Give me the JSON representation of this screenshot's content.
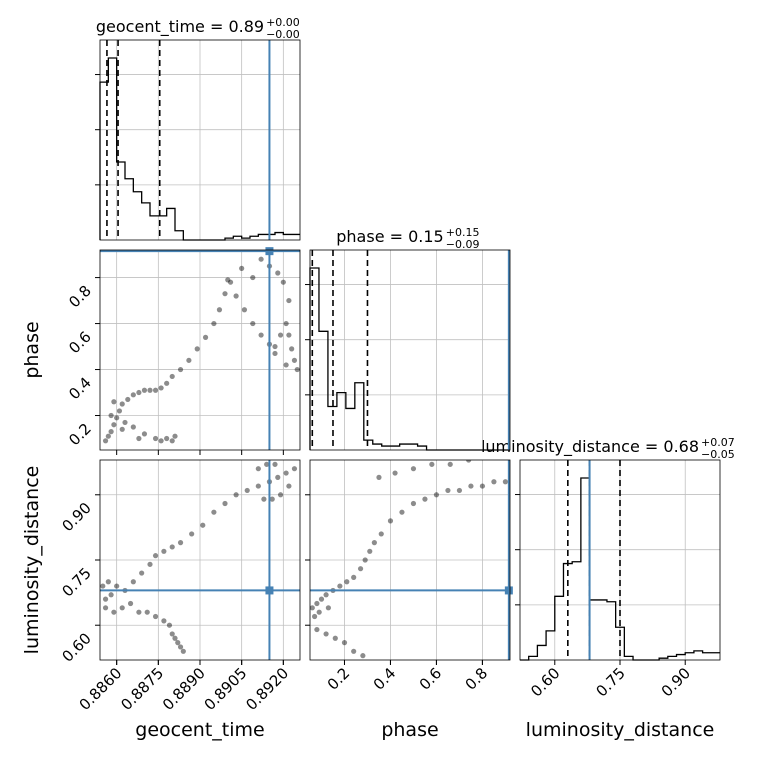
{
  "chart_data": {
    "type": "corner",
    "parameters": [
      "geocent_time",
      "phase",
      "luminosity_distance"
    ],
    "truths": {
      "geocent_time": 0.8915,
      "phase": 0.915,
      "luminosity_distance": 0.68
    },
    "truth_color": "#4682b4",
    "grid": true,
    "titles": {
      "geocent_time": {
        "label": "geocent_time",
        "median": "0.89",
        "plus": "+0.00",
        "minus": "−0.00"
      },
      "phase": {
        "label": "phase",
        "median": "0.15",
        "plus": "+0.15",
        "minus": "−0.09"
      },
      "luminosity_distance": {
        "label": "luminosity_distance",
        "median": "0.68",
        "plus": "+0.07",
        "minus": "−0.05"
      }
    },
    "axes": {
      "geocent_time": {
        "label": "geocent_time",
        "range": [
          0.8854,
          0.8926
        ],
        "ticks": [
          0.886,
          0.8875,
          0.889,
          0.8905,
          0.892
        ],
        "tick_labels": [
          "0.8860",
          "0.8875",
          "0.8890",
          "0.8905",
          "0.8920"
        ]
      },
      "phase": {
        "label": "phase",
        "range": [
          0.05,
          0.92
        ],
        "ticks": [
          0.2,
          0.4,
          0.6,
          0.8
        ],
        "tick_labels": [
          "0.2",
          "0.4",
          "0.6",
          "0.8"
        ]
      },
      "luminosity_distance": {
        "label": "luminosity_distance",
        "range": [
          0.52,
          0.98
        ],
        "ticks": [
          0.6,
          0.75,
          0.9
        ],
        "tick_labels": [
          "0.60",
          "0.75",
          "0.90"
        ]
      }
    },
    "histograms": {
      "geocent_time": {
        "bin_edges": [
          0.8854,
          0.8857,
          0.886,
          0.8863,
          0.8866,
          0.8869,
          0.8872,
          0.8875,
          0.8878,
          0.8881,
          0.8884,
          0.8887,
          0.889,
          0.8893,
          0.8896,
          0.8899,
          0.8902,
          0.8905,
          0.8908,
          0.8911,
          0.8914,
          0.8917,
          0.892,
          0.8923,
          0.8926
        ],
        "counts": [
          0.85,
          0.98,
          0.42,
          0.33,
          0.26,
          0.2,
          0.13,
          0.13,
          0.17,
          0.05,
          0.0,
          0.0,
          0.0,
          0.0,
          0.0,
          0.01,
          0.02,
          0.01,
          0.02,
          0.03,
          0.03,
          0.04,
          0.03,
          0.03
        ],
        "quantiles": [
          0.88565,
          0.88605,
          0.88755
        ]
      },
      "phase": {
        "bin_edges": [
          0.05,
          0.089,
          0.128,
          0.167,
          0.206,
          0.245,
          0.284,
          0.323,
          0.362,
          0.401,
          0.44,
          0.479,
          0.518,
          0.557,
          0.596,
          0.635,
          0.674,
          0.713,
          0.752,
          0.791,
          0.83,
          0.869,
          0.92
        ],
        "counts": [
          0.92,
          0.6,
          0.22,
          0.29,
          0.21,
          0.34,
          0.05,
          0.03,
          0.02,
          0.02,
          0.03,
          0.03,
          0.02,
          0.0,
          0.0,
          0.0,
          0.0,
          0.0,
          0.0,
          0.0,
          0.0,
          0.0
        ],
        "quantiles": [
          0.06,
          0.15,
          0.3
        ]
      },
      "luminosity_distance": {
        "bin_edges": [
          0.52,
          0.54,
          0.56,
          0.58,
          0.6,
          0.62,
          0.64,
          0.66,
          0.68,
          0.7,
          0.72,
          0.74,
          0.76,
          0.78,
          0.8,
          0.82,
          0.84,
          0.86,
          0.88,
          0.9,
          0.92,
          0.94,
          0.96,
          0.98
        ],
        "counts": [
          0.0,
          0.02,
          0.08,
          0.16,
          0.35,
          0.53,
          0.54,
          1.0,
          0.33,
          0.33,
          0.32,
          0.18,
          0.02,
          0.0,
          0.0,
          0.0,
          0.01,
          0.02,
          0.03,
          0.04,
          0.05,
          0.04,
          0.04
        ],
        "quantiles": [
          0.63,
          0.68,
          0.75
        ]
      }
    },
    "samples_2d": {
      "phase_vs_geocent_time": [
        [
          0.8856,
          0.09
        ],
        [
          0.8857,
          0.11
        ],
        [
          0.8858,
          0.13
        ],
        [
          0.8859,
          0.16
        ],
        [
          0.886,
          0.19
        ],
        [
          0.8861,
          0.22
        ],
        [
          0.8862,
          0.25
        ],
        [
          0.8864,
          0.27
        ],
        [
          0.8866,
          0.29
        ],
        [
          0.8868,
          0.3
        ],
        [
          0.887,
          0.31
        ],
        [
          0.8872,
          0.31
        ],
        [
          0.8874,
          0.31
        ],
        [
          0.8876,
          0.32
        ],
        [
          0.8878,
          0.34
        ],
        [
          0.888,
          0.37
        ],
        [
          0.8883,
          0.4
        ],
        [
          0.8886,
          0.44
        ],
        [
          0.8889,
          0.49
        ],
        [
          0.8892,
          0.54
        ],
        [
          0.8895,
          0.6
        ],
        [
          0.8897,
          0.66
        ],
        [
          0.8899,
          0.73
        ],
        [
          0.89,
          0.79
        ],
        [
          0.8903,
          0.72
        ],
        [
          0.8906,
          0.66
        ],
        [
          0.8909,
          0.6
        ],
        [
          0.8912,
          0.55
        ],
        [
          0.8915,
          0.51
        ],
        [
          0.8917,
          0.5
        ],
        [
          0.8919,
          0.55
        ],
        [
          0.8921,
          0.6
        ],
        [
          0.8922,
          0.55
        ],
        [
          0.8923,
          0.49
        ],
        [
          0.8924,
          0.44
        ],
        [
          0.8925,
          0.4
        ],
        [
          0.8921,
          0.42
        ],
        [
          0.8917,
          0.47
        ],
        [
          0.8866,
          0.15
        ],
        [
          0.887,
          0.12
        ],
        [
          0.8874,
          0.1
        ],
        [
          0.8878,
          0.1
        ],
        [
          0.888,
          0.09
        ],
        [
          0.8881,
          0.11
        ],
        [
          0.8862,
          0.14
        ],
        [
          0.8868,
          0.1
        ],
        [
          0.8876,
          0.09
        ],
        [
          0.8858,
          0.2
        ],
        [
          0.8863,
          0.17
        ],
        [
          0.8859,
          0.26
        ],
        [
          0.8912,
          0.88
        ],
        [
          0.8915,
          0.85
        ],
        [
          0.8918,
          0.82
        ],
        [
          0.892,
          0.78
        ],
        [
          0.8922,
          0.7
        ],
        [
          0.8909,
          0.8
        ],
        [
          0.8905,
          0.84
        ],
        [
          0.8901,
          0.78
        ]
      ],
      "luminosity_distance_vs_geocent_time": [
        [
          0.8855,
          0.69
        ],
        [
          0.8857,
          0.7
        ],
        [
          0.886,
          0.69
        ],
        [
          0.8863,
          0.68
        ],
        [
          0.8866,
          0.7
        ],
        [
          0.8869,
          0.72
        ],
        [
          0.8872,
          0.74
        ],
        [
          0.8874,
          0.76
        ],
        [
          0.8877,
          0.77
        ],
        [
          0.888,
          0.78
        ],
        [
          0.8883,
          0.79
        ],
        [
          0.8887,
          0.81
        ],
        [
          0.8891,
          0.83
        ],
        [
          0.8895,
          0.86
        ],
        [
          0.8899,
          0.88
        ],
        [
          0.8903,
          0.9
        ],
        [
          0.8907,
          0.91
        ],
        [
          0.8911,
          0.92
        ],
        [
          0.8915,
          0.93
        ],
        [
          0.8918,
          0.94
        ],
        [
          0.8921,
          0.95
        ],
        [
          0.8924,
          0.96
        ],
        [
          0.8922,
          0.92
        ],
        [
          0.8919,
          0.9
        ],
        [
          0.8916,
          0.89
        ],
        [
          0.8913,
          0.89
        ],
        [
          0.8911,
          0.96
        ],
        [
          0.8914,
          0.97
        ],
        [
          0.8917,
          0.97
        ],
        [
          0.8856,
          0.64
        ],
        [
          0.8859,
          0.63
        ],
        [
          0.8862,
          0.64
        ],
        [
          0.8865,
          0.65
        ],
        [
          0.8868,
          0.63
        ],
        [
          0.8871,
          0.63
        ],
        [
          0.8874,
          0.62
        ],
        [
          0.8877,
          0.61
        ],
        [
          0.8879,
          0.6
        ],
        [
          0.888,
          0.58
        ],
        [
          0.8881,
          0.57
        ],
        [
          0.8882,
          0.56
        ],
        [
          0.8883,
          0.55
        ],
        [
          0.8884,
          0.54
        ],
        [
          0.8858,
          0.67
        ],
        [
          0.8856,
          0.66
        ]
      ],
      "luminosity_distance_vs_phase": [
        [
          0.06,
          0.64
        ],
        [
          0.08,
          0.65
        ],
        [
          0.1,
          0.66
        ],
        [
          0.12,
          0.67
        ],
        [
          0.15,
          0.68
        ],
        [
          0.18,
          0.69
        ],
        [
          0.21,
          0.7
        ],
        [
          0.24,
          0.71
        ],
        [
          0.27,
          0.73
        ],
        [
          0.29,
          0.75
        ],
        [
          0.31,
          0.77
        ],
        [
          0.33,
          0.79
        ],
        [
          0.36,
          0.81
        ],
        [
          0.4,
          0.84
        ],
        [
          0.45,
          0.86
        ],
        [
          0.5,
          0.88
        ],
        [
          0.55,
          0.89
        ],
        [
          0.6,
          0.9
        ],
        [
          0.65,
          0.91
        ],
        [
          0.7,
          0.91
        ],
        [
          0.75,
          0.92
        ],
        [
          0.8,
          0.92
        ],
        [
          0.85,
          0.93
        ],
        [
          0.9,
          0.93
        ],
        [
          0.35,
          0.94
        ],
        [
          0.42,
          0.95
        ],
        [
          0.5,
          0.96
        ],
        [
          0.58,
          0.97
        ],
        [
          0.66,
          0.97
        ],
        [
          0.74,
          0.98
        ],
        [
          0.08,
          0.59
        ],
        [
          0.12,
          0.58
        ],
        [
          0.16,
          0.57
        ],
        [
          0.2,
          0.56
        ],
        [
          0.24,
          0.54
        ],
        [
          0.28,
          0.53
        ],
        [
          0.07,
          0.62
        ],
        [
          0.09,
          0.63
        ],
        [
          0.13,
          0.64
        ]
      ]
    }
  }
}
